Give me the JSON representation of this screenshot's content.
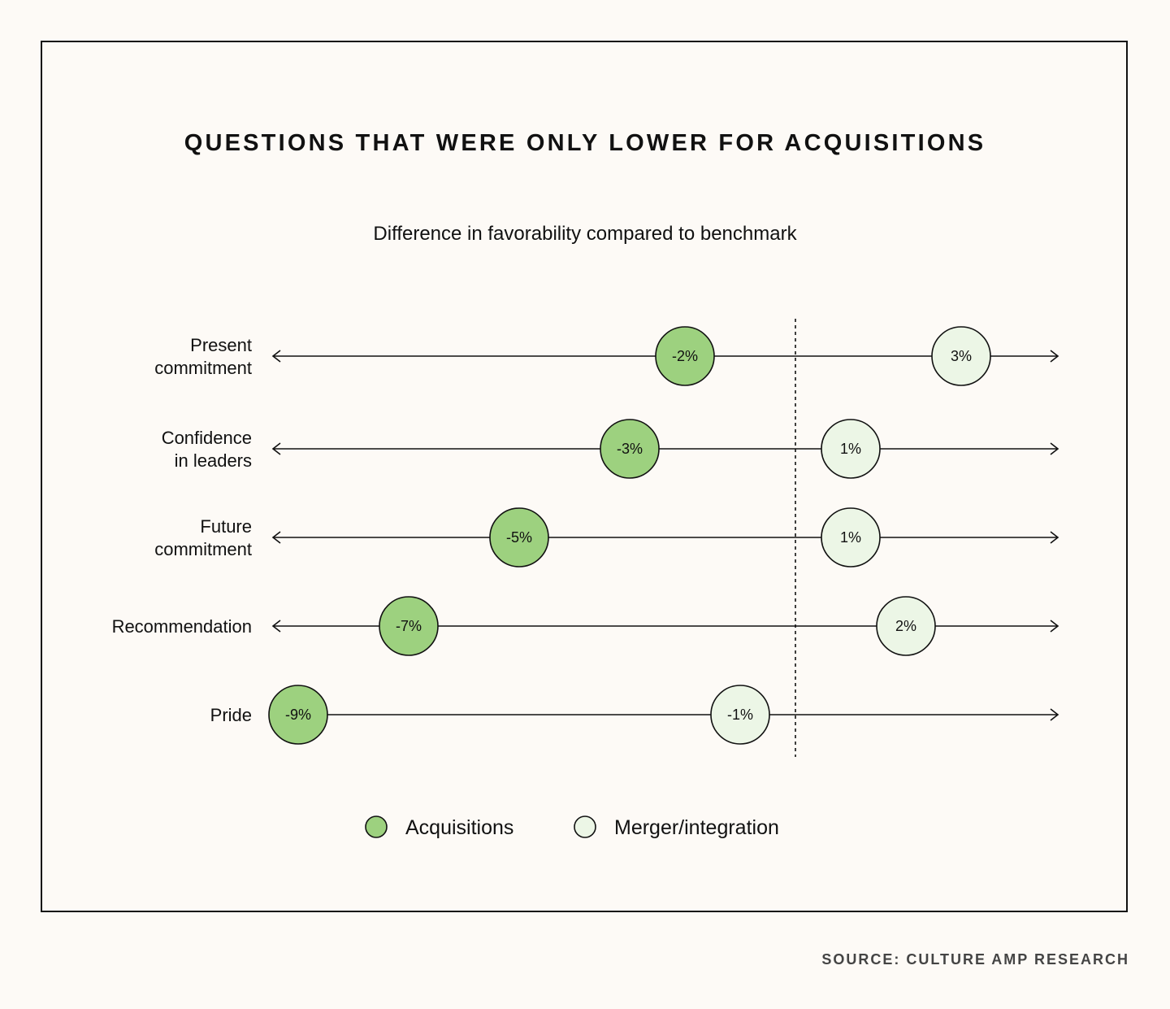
{
  "chart_data": {
    "type": "scatter",
    "title": "QUESTIONS THAT WERE ONLY LOWER FOR ACQUISITIONS",
    "subtitle": "Difference in favorability compared to benchmark",
    "xlim": [
      -10,
      5
    ],
    "categories": [
      [
        "Present",
        "commitment"
      ],
      [
        "Confidence",
        "in leaders"
      ],
      [
        "Future",
        "commitment"
      ],
      [
        "Recommendation"
      ],
      [
        "Pride"
      ]
    ],
    "series": [
      {
        "name": "Acquisitions",
        "color": "#9dd17f",
        "values": [
          -2,
          -3,
          -5,
          -7,
          -9
        ],
        "labels": [
          "-2%",
          "-3%",
          "-5%",
          "-7%",
          "-9%"
        ]
      },
      {
        "name": "Merger/integration",
        "color": "#ecf6e6",
        "values": [
          3,
          1,
          1,
          2,
          -1
        ],
        "labels": [
          "3%",
          "1%",
          "1%",
          "2%",
          "-1%"
        ]
      }
    ],
    "legend": "bottom-center",
    "grid": false
  },
  "source": "SOURCE: CULTURE AMP RESEARCH"
}
